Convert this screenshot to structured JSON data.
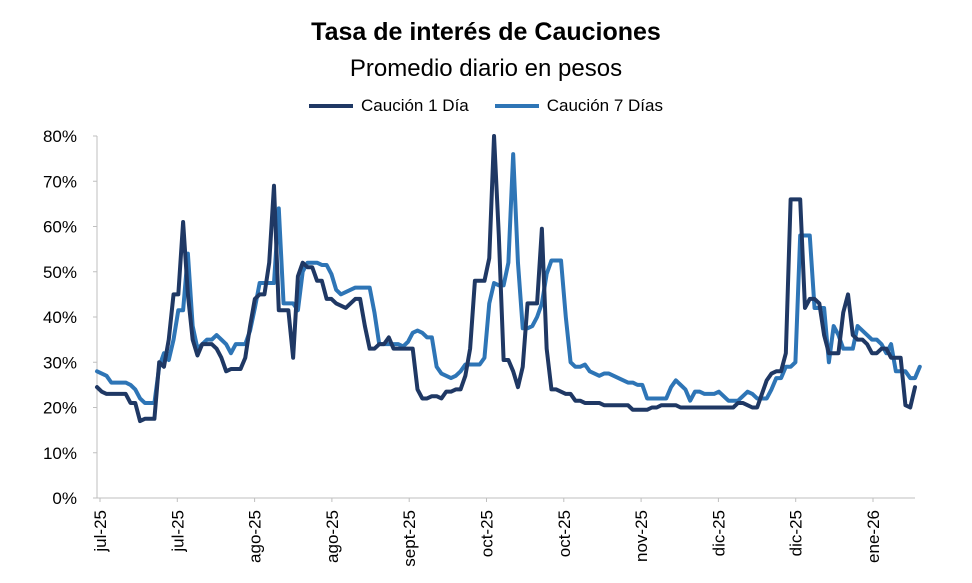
{
  "chart_data": {
    "type": "line",
    "title": "Tasa de interés de Cauciones",
    "subtitle": "Promedio diario en pesos",
    "ylim": [
      0,
      80
    ],
    "yticks": [
      "0%",
      "10%",
      "20%",
      "30%",
      "40%",
      "50%",
      "60%",
      "70%",
      "80%"
    ],
    "ytick_values": [
      0,
      10,
      20,
      30,
      40,
      50,
      60,
      70,
      80
    ],
    "xtick_labels": [
      "jul-25",
      "jul-25",
      "ago-25",
      "ago-25",
      "sept-25",
      "oct-25",
      "oct-25",
      "nov-25",
      "dic-25",
      "dic-25",
      "ene-26"
    ],
    "grid": false,
    "legend_position": "top",
    "series": [
      {
        "name": "Caución 1 Día",
        "color": "#1F3864",
        "values": [
          24.5,
          23.5,
          23,
          23,
          23,
          23,
          23,
          21,
          21,
          17,
          17.5,
          17.5,
          17.5,
          30,
          29,
          35,
          45,
          45,
          61,
          45,
          35,
          31.5,
          34,
          34,
          34,
          33,
          31,
          28,
          28.5,
          28.5,
          28.5,
          31,
          38,
          44,
          45,
          45,
          52,
          69,
          41.5,
          41.5,
          41.5,
          31,
          49,
          52,
          51,
          51,
          48,
          48,
          44,
          44,
          43,
          42.5,
          42,
          43,
          44,
          44,
          38,
          33,
          33,
          34,
          34,
          35.5,
          33,
          33,
          33,
          33,
          33,
          24,
          22,
          22,
          22.5,
          22.5,
          22,
          23.5,
          23.5,
          24,
          24,
          27,
          33,
          48,
          48,
          48,
          53,
          80,
          58,
          30.5,
          30.5,
          28,
          24.5,
          29,
          43,
          43,
          43,
          59.5,
          33,
          24,
          24,
          23.5,
          23,
          23,
          21.5,
          21.5,
          21,
          21,
          21,
          21,
          20.5,
          20.5,
          20.5,
          20.5,
          20.5,
          20.5,
          19.5,
          19.5,
          19.5,
          19.5,
          20,
          20,
          20.5,
          20.5,
          20.5,
          20.5,
          20,
          20,
          20,
          20,
          20,
          20,
          20,
          20,
          20,
          20,
          20,
          20,
          21,
          21,
          20.5,
          20,
          20,
          23,
          26,
          27.5,
          28,
          28,
          32,
          66,
          66,
          66,
          42,
          44,
          44,
          43,
          36,
          32,
          32,
          32,
          41,
          45,
          36,
          35,
          35,
          34,
          32,
          32,
          33,
          33,
          31,
          31,
          31,
          20.5,
          20,
          24.5
        ]
      },
      {
        "name": "Caución 7 Días",
        "color": "#2E75B6",
        "values": [
          28,
          27.5,
          27,
          25.5,
          25.5,
          25.5,
          25.5,
          25,
          24,
          22,
          21,
          21,
          21,
          29,
          32,
          30.5,
          35,
          41.5,
          41.5,
          54,
          38,
          33,
          34,
          35,
          35,
          36,
          35,
          34,
          32,
          34,
          34,
          34,
          37,
          42,
          47.5,
          47.5,
          47.5,
          47.5,
          64,
          43,
          43,
          43,
          41.5,
          50,
          52,
          52,
          52,
          51.5,
          51.5,
          49.5,
          46,
          45,
          45.5,
          46,
          46.5,
          46.5,
          46.5,
          46.5,
          41,
          34,
          34,
          34,
          34,
          34,
          33.5,
          34.5,
          36.5,
          37,
          36.5,
          35.5,
          35.5,
          29,
          27.5,
          27,
          26.5,
          27,
          28,
          29.5,
          29.5,
          29.5,
          29.5,
          31,
          43,
          47.5,
          47,
          47,
          52,
          76,
          52,
          37.5,
          37.5,
          38,
          40,
          43,
          49.5,
          52.5,
          52.5,
          52.5,
          40,
          30,
          29,
          29,
          29.5,
          28,
          27.5,
          27,
          27.5,
          27.5,
          27,
          26.5,
          26,
          25.5,
          25.5,
          25,
          25,
          22,
          22,
          22,
          22,
          22,
          24.5,
          26,
          25,
          24,
          21.5,
          23.5,
          23.5,
          23,
          23,
          23,
          23.5,
          22.5,
          21.5,
          21.5,
          21.5,
          22.5,
          23.5,
          23,
          22,
          22,
          22,
          24,
          26.5,
          26.5,
          29,
          29,
          30,
          58,
          58,
          58,
          42,
          42,
          42,
          30,
          38,
          36,
          33,
          33,
          33,
          38,
          37,
          36,
          35,
          35,
          34,
          32,
          34,
          28,
          28,
          28,
          26.5,
          26.5,
          29
        ]
      }
    ]
  }
}
